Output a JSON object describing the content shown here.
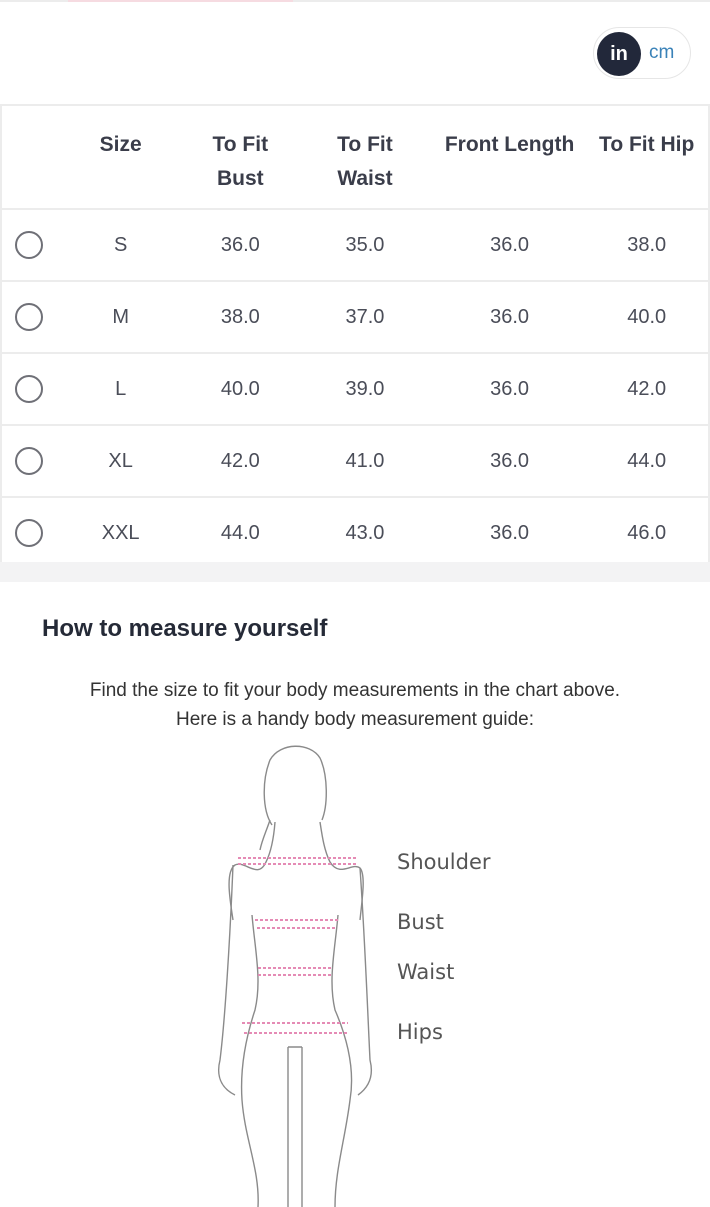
{
  "unit_toggle": {
    "options": [
      "in",
      "cm"
    ],
    "selected": "in"
  },
  "table": {
    "headers": [
      {
        "line1": "Size",
        "line2": ""
      },
      {
        "line1": "To Fit",
        "line2": "Bust"
      },
      {
        "line1": "To Fit",
        "line2": "Waist"
      },
      {
        "line1": "Front Length",
        "line2": ""
      },
      {
        "line1": "To Fit Hip",
        "line2": ""
      }
    ],
    "rows": [
      {
        "size": "S",
        "bust": "36.0",
        "waist": "35.0",
        "front_length": "36.0",
        "hip": "38.0",
        "selected": false
      },
      {
        "size": "M",
        "bust": "38.0",
        "waist": "37.0",
        "front_length": "36.0",
        "hip": "40.0",
        "selected": false
      },
      {
        "size": "L",
        "bust": "40.0",
        "waist": "39.0",
        "front_length": "36.0",
        "hip": "42.0",
        "selected": false
      },
      {
        "size": "XL",
        "bust": "42.0",
        "waist": "41.0",
        "front_length": "36.0",
        "hip": "44.0",
        "selected": false
      },
      {
        "size": "XXL",
        "bust": "44.0",
        "waist": "43.0",
        "front_length": "36.0",
        "hip": "46.0",
        "selected": false
      }
    ]
  },
  "measure": {
    "title": "How to measure yourself",
    "line1": "Find the size to fit your body measurements in the chart above.",
    "line2": "Here is a handy body measurement guide:",
    "labels": {
      "shoulder": "Shoulder",
      "bust": "Bust",
      "waist": "Waist",
      "hips": "Hips"
    }
  },
  "colors": {
    "toggle_active": "#22283a",
    "toggle_inactive_text": "#3a82b8",
    "measure_line": "#e58bb5"
  }
}
